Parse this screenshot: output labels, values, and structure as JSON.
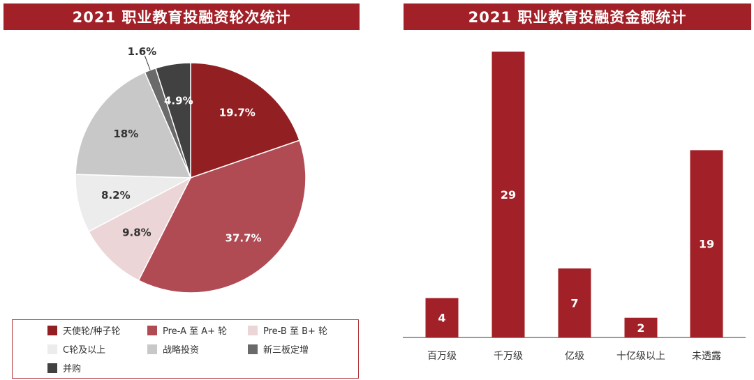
{
  "titles": {
    "left": "2021 职业教育投融资轮次统计",
    "right": "2021 职业教育投融资金额统计"
  },
  "chart_data": [
    {
      "type": "pie",
      "title": "2021 职业教育投融资轮次统计",
      "slices": [
        {
          "name": "天使轮/种子轮",
          "value": 19.7,
          "label": "19.7%",
          "color": "#922023",
          "text_color": "#ffffff"
        },
        {
          "name": "Pre-A 至 A+ 轮",
          "value": 37.7,
          "label": "37.7%",
          "color": "#b04b54",
          "text_color": "#ffffff"
        },
        {
          "name": "Pre-B 至 B+ 轮",
          "value": 9.8,
          "label": "9.8%",
          "color": "#ecd5d6",
          "text_color": "#333333"
        },
        {
          "name": "C轮及以上",
          "value": 8.2,
          "label": "8.2%",
          "color": "#ececec",
          "text_color": "#333333"
        },
        {
          "name": "战略投资",
          "value": 18.0,
          "label": "18%",
          "color": "#c8c8c8",
          "text_color": "#333333"
        },
        {
          "name": "新三板定增",
          "value": 1.6,
          "label": "1.6%",
          "color": "#6a6a6a",
          "text_color": "#333333"
        },
        {
          "name": "并购",
          "value": 4.9,
          "label": "4.9%",
          "color": "#414141",
          "text_color": "#ffffff"
        }
      ],
      "legend_placement": "bottom"
    },
    {
      "type": "bar",
      "title": "2021 职业教育投融资金额统计",
      "categories": [
        "百万级",
        "千万级",
        "亿级",
        "十亿级以上",
        "未透露"
      ],
      "values": [
        4,
        29,
        7,
        2,
        19
      ],
      "labels": [
        "4",
        "29",
        "7",
        "2",
        "19"
      ],
      "color": "#a22027",
      "ylim": [
        0,
        29
      ],
      "grid": false
    }
  ]
}
